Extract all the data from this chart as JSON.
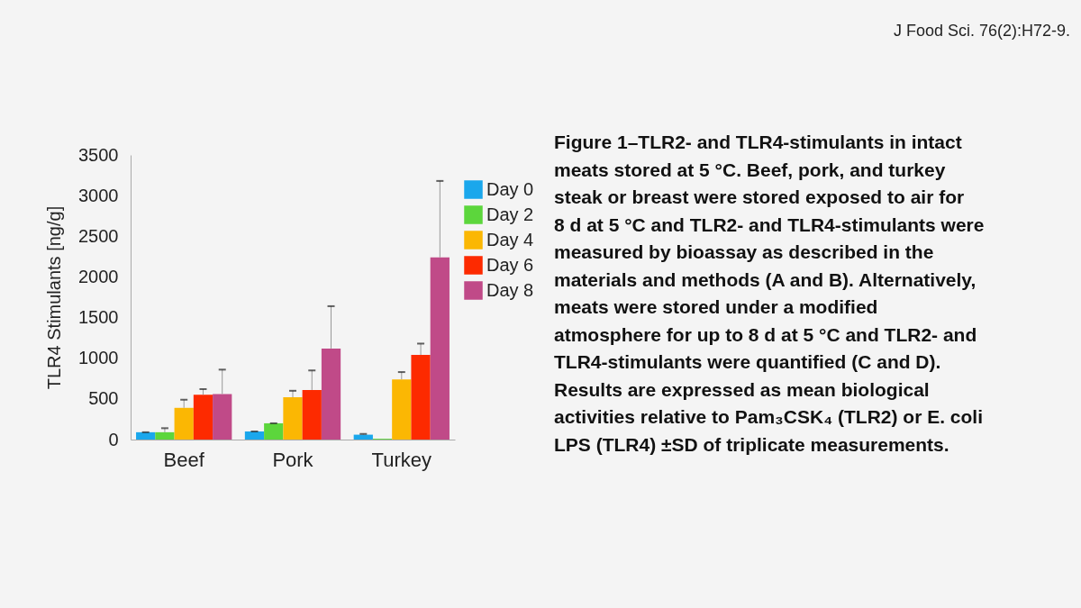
{
  "chart_data": {
    "type": "bar",
    "ylabel": "TLR4 Stimulants [ng/g]",
    "categories": [
      "Beef",
      "Pork",
      "Turkey"
    ],
    "series": [
      {
        "name": "Day 0",
        "color": "#1aa7ec",
        "values": [
          90,
          100,
          60
        ],
        "errors": [
          [
            90,
            90
          ],
          [
            100,
            100
          ],
          [
            60,
            70
          ]
        ]
      },
      {
        "name": "Day 2",
        "color": "#5cd63c",
        "values": [
          90,
          200,
          10
        ],
        "errors": [
          [
            90,
            140
          ],
          [
            200,
            200
          ],
          null
        ]
      },
      {
        "name": "Day 4",
        "color": "#fbb703",
        "values": [
          390,
          520,
          740
        ],
        "errors": [
          [
            390,
            490
          ],
          [
            520,
            600
          ],
          [
            740,
            830
          ]
        ]
      },
      {
        "name": "Day 6",
        "color": "#fd2a00",
        "values": [
          550,
          610,
          1040
        ],
        "errors": [
          [
            550,
            620
          ],
          [
            610,
            850
          ],
          [
            1040,
            1180
          ]
        ]
      },
      {
        "name": "Day 8",
        "color": "#c04a88",
        "values": [
          560,
          1120,
          2240
        ],
        "errors": [
          [
            560,
            860
          ],
          [
            1120,
            1640
          ],
          [
            2240,
            3180
          ]
        ]
      }
    ],
    "ylim": [
      0,
      3500
    ],
    "yticks": [
      0,
      500,
      1000,
      1500,
      2000,
      2500,
      3000,
      3500
    ],
    "grid": false,
    "legend": "right",
    "annotations": [
      "J Food Sci. 76(2):H72-9.",
      "Figure 1–TLR2- and TLR4-stimulants in intact\nmeats stored at 5 °C. Beef, pork, and turkey\nsteak or breast were stored exposed to air for\n8 d at 5 °C and TLR2- and TLR4-stimulants were\nmeasured by bioassay as described in the\nmaterials and methods (A and B). Alternatively,\nmeats were stored under a modified\natmosphere for up to 8 d at 5 °C and TLR2- and\nTLR4-stimulants were quantified (C and D).\nResults are expressed as mean biological\nactivities relative to Pam₃CSK₄ (TLR2) or E. coli\nLPS (TLR4) ±SD of triplicate measurements."
    ]
  }
}
